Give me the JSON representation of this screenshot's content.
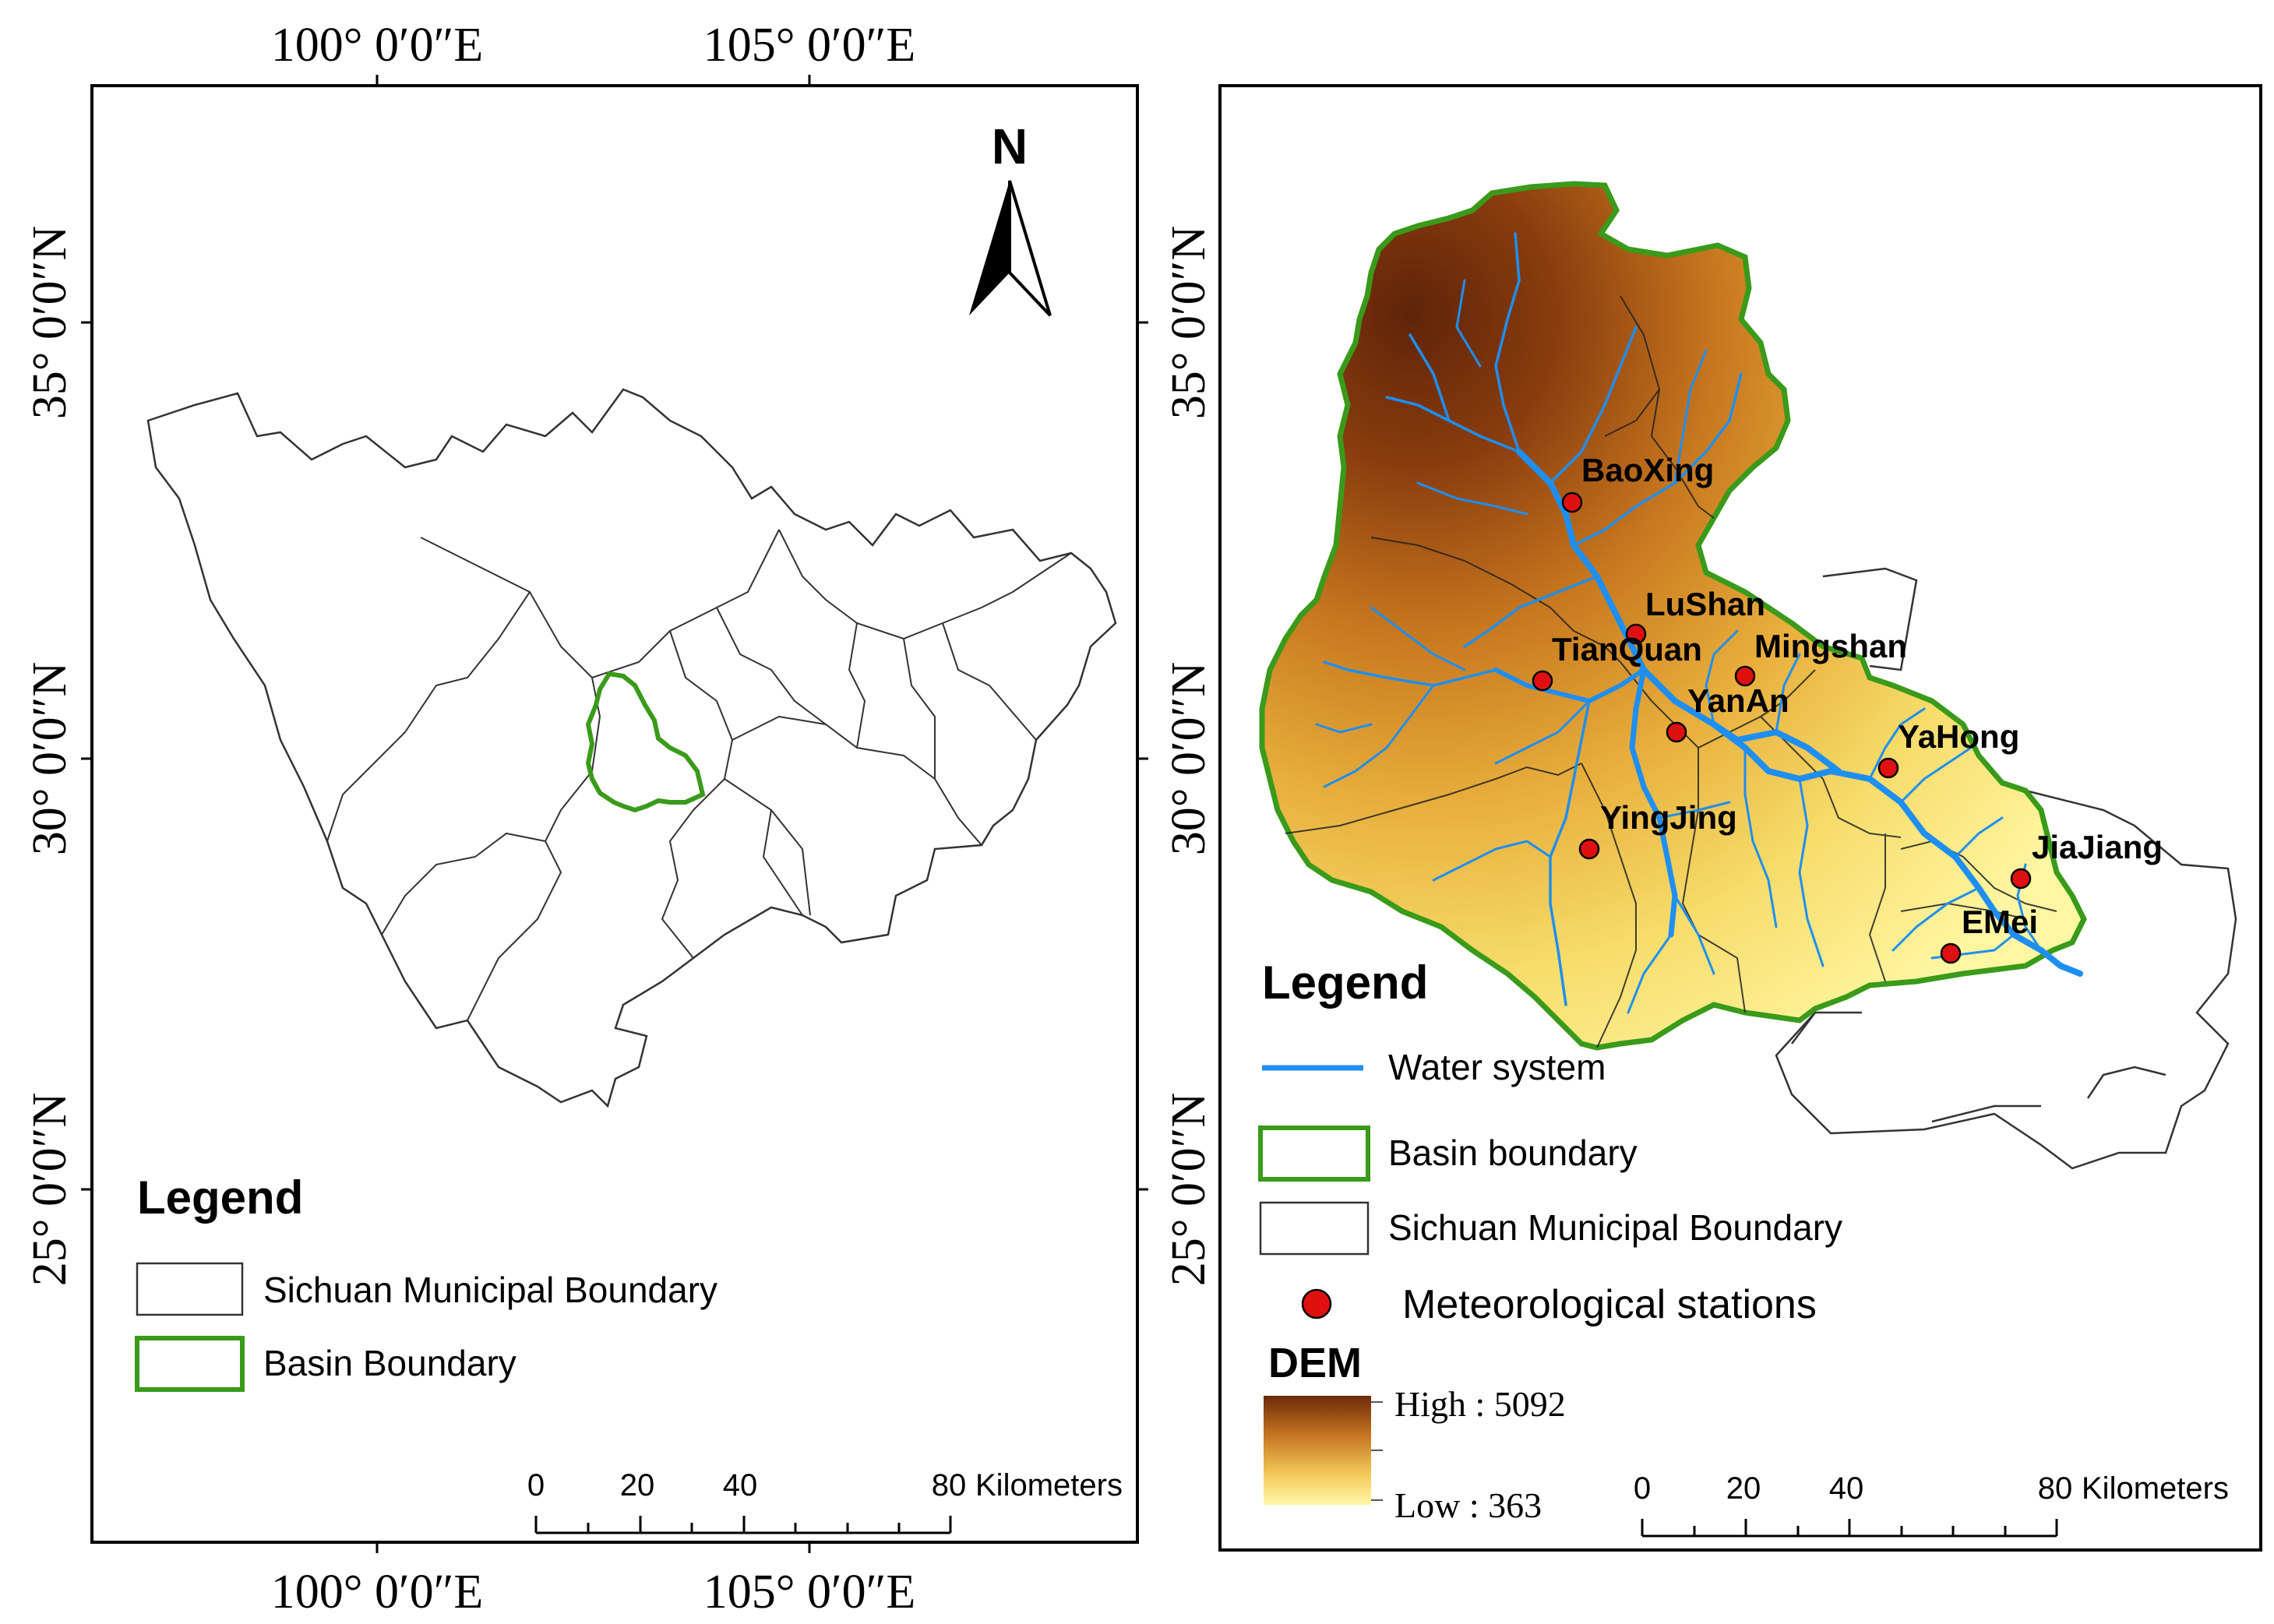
{
  "left_map": {
    "top_ticks": [
      "100° 0′0″E",
      "105° 0′0″E"
    ],
    "bottom_ticks": [
      "100° 0′0″E",
      "105° 0′0″E"
    ],
    "left_ticks": [
      "35° 0′0″N",
      "30° 0′0″N",
      "25° 0′0″N"
    ],
    "right_ticks": [
      "35° 0′0″N",
      "30° 0′0″N",
      "25° 0′0″N"
    ],
    "north_label": "N",
    "legend": {
      "title": "Legend",
      "items": [
        "Sichuan Municipal Boundary",
        "Basin Boundary"
      ]
    },
    "scalebar": {
      "labels": [
        "0",
        "20",
        "40",
        "80"
      ],
      "unit": "Kilometers"
    }
  },
  "right_map": {
    "stations": [
      "BaoXing",
      "LuShan",
      "TianQuan",
      "Mingshan",
      "YanAn",
      "YaHong",
      "YingJing",
      "JiaJiang",
      "EMei"
    ],
    "legend": {
      "title": "Legend",
      "items": [
        "Water system",
        "Basin boundary",
        "Sichuan Municipal Boundary",
        "Meteorological stations"
      ],
      "dem_title": "DEM",
      "dem_high": "High : 5092",
      "dem_low": "Low : 363"
    },
    "scalebar": {
      "labels": [
        "0",
        "20",
        "40",
        "80"
      ],
      "unit": "Kilometers"
    }
  },
  "colors": {
    "basin_green": "#3a9a1a",
    "water_blue": "#1e8ff0",
    "station_red": "#e01010",
    "dem_high": "#6b2a0a",
    "dem_low": "#fff8a8"
  }
}
